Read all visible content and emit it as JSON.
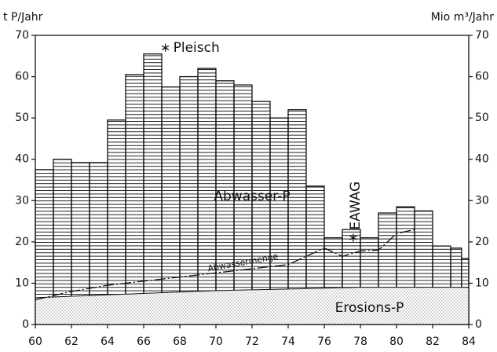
{
  "chart_data": {
    "type": "histogram",
    "ylabel": "t P/Jahr",
    "y2label": "Mio m³/Jahr",
    "bins": [
      60,
      61,
      62,
      63,
      64,
      65,
      66,
      67,
      68,
      69,
      70,
      71,
      72,
      73,
      74,
      75,
      76,
      77,
      78,
      79,
      80,
      81,
      82,
      83,
      83.6,
      84
    ],
    "values": [
      37.5,
      40,
      39.2,
      39.2,
      49.5,
      60.5,
      65.5,
      57.5,
      60,
      62,
      59,
      58,
      54,
      50,
      52,
      33.5,
      21,
      23,
      21,
      27,
      28.5,
      27.5,
      19,
      18.5,
      16
    ],
    "series_label": "Abwasser-P",
    "erosion": {
      "name": "Erosions-P",
      "x": [
        60,
        70,
        78,
        84
      ],
      "values": [
        6.5,
        8.2,
        9,
        9
      ]
    },
    "line": {
      "name": "Abwassermenge",
      "axis": "y2",
      "x": [
        60,
        62,
        64,
        66,
        68,
        70,
        72,
        74,
        75,
        76,
        77,
        78,
        79,
        80,
        81
      ],
      "values": [
        6,
        8,
        9.5,
        10.5,
        11.5,
        12.5,
        13.5,
        14.5,
        16.5,
        18.5,
        16.5,
        17.8,
        18,
        22,
        23
      ]
    },
    "points": [
      {
        "label": "Pleisch",
        "x": 67.2,
        "y": 67
      },
      {
        "label": "EAWAG",
        "x": 77.6,
        "y": 21
      }
    ],
    "xlim": [
      60,
      84
    ],
    "xticks": [
      60,
      62,
      64,
      66,
      68,
      70,
      72,
      74,
      76,
      78,
      80,
      82,
      84
    ],
    "ylim": [
      0,
      70
    ],
    "yticks": [
      0,
      10,
      20,
      30,
      40,
      50,
      60,
      70
    ],
    "y2lim": [
      0,
      70
    ],
    "y2ticks": [
      0,
      10,
      20,
      30,
      40,
      50,
      60,
      70
    ]
  }
}
